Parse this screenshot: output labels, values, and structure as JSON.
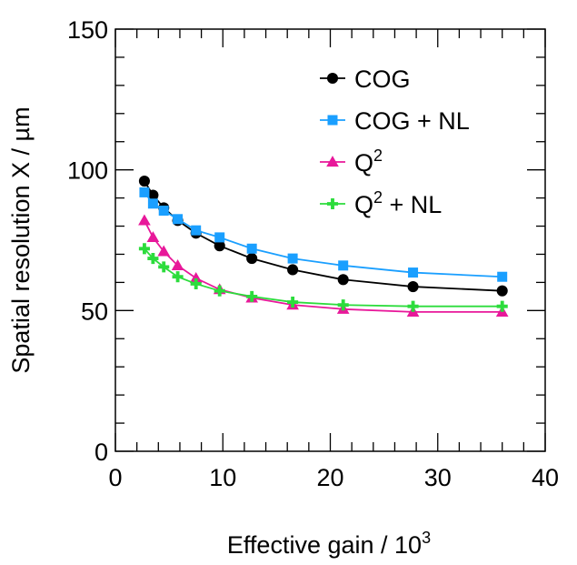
{
  "chart_data": {
    "type": "line",
    "xlabel": "Effective gain / 10",
    "xlabel_sup": "3",
    "ylabel": "Spatial resolution X / µm",
    "xlim": [
      0,
      40
    ],
    "ylim": [
      0,
      150
    ],
    "xticks": [
      0,
      10,
      20,
      30,
      40
    ],
    "yticks": [
      0,
      50,
      100,
      150
    ],
    "xtick_labels": [
      "0",
      "10",
      "20",
      "30",
      "40"
    ],
    "ytick_labels": [
      "0",
      "50",
      "100",
      "150"
    ],
    "legend_position": "top-right",
    "series": [
      {
        "name": "COG",
        "name_sup": "",
        "color": "#000000",
        "marker": "circle",
        "x": [
          2.7,
          3.5,
          4.5,
          5.8,
          7.5,
          9.7,
          12.7,
          16.5,
          21.2,
          27.7,
          36.0
        ],
        "y": [
          96,
          91,
          86.5,
          82,
          77.5,
          73,
          68.5,
          64.5,
          61,
          58.5,
          57
        ]
      },
      {
        "name": "COG + NL",
        "name_sup": "",
        "color": "#1a9fff",
        "marker": "square",
        "x": [
          2.7,
          3.5,
          4.5,
          5.8,
          7.5,
          9.7,
          12.7,
          16.5,
          21.2,
          27.7,
          36.0
        ],
        "y": [
          92,
          88,
          85.5,
          82.5,
          78.5,
          76,
          72,
          68.5,
          66,
          63.5,
          62
        ]
      },
      {
        "name": "Q",
        "name_sup": "2",
        "color": "#e8189a",
        "marker": "triangle",
        "x": [
          2.7,
          3.5,
          4.5,
          5.8,
          7.5,
          9.7,
          12.7,
          16.5,
          21.2,
          27.7,
          36.0
        ],
        "y": [
          82,
          76,
          71,
          66,
          61.5,
          57.5,
          54.5,
          52,
          50.5,
          49.5,
          49.5
        ]
      },
      {
        "name": "Q",
        "name_sup": "2",
        "name_suffix": " + NL",
        "color": "#2cdc3c",
        "marker": "cross",
        "x": [
          2.7,
          3.5,
          4.5,
          5.8,
          7.5,
          9.7,
          12.7,
          16.5,
          21.2,
          27.7,
          36.0
        ],
        "y": [
          72,
          68.5,
          65.5,
          62,
          59.5,
          57,
          55,
          53,
          52,
          51.5,
          51.5
        ]
      }
    ]
  }
}
